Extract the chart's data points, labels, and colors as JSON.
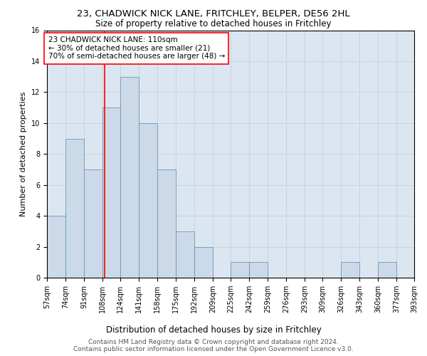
{
  "title": "23, CHADWICK NICK LANE, FRITCHLEY, BELPER, DE56 2HL",
  "subtitle": "Size of property relative to detached houses in Fritchley",
  "xlabel": "Distribution of detached houses by size in Fritchley",
  "ylabel": "Number of detached properties",
  "bin_edges": [
    57,
    74,
    91,
    108,
    124,
    141,
    158,
    175,
    192,
    209,
    225,
    242,
    259,
    276,
    293,
    309,
    326,
    343,
    360,
    377,
    393
  ],
  "bar_heights": [
    4,
    9,
    7,
    11,
    13,
    10,
    7,
    3,
    2,
    0,
    1,
    1,
    0,
    0,
    0,
    0,
    1,
    0,
    1,
    0
  ],
  "bar_color": "#ccd9e8",
  "bar_edgecolor": "#6699bb",
  "red_line_x": 110,
  "annotation_text": "23 CHADWICK NICK LANE: 110sqm\n← 30% of detached houses are smaller (21)\n70% of semi-detached houses are larger (48) →",
  "annotation_box_color": "white",
  "annotation_box_edgecolor": "red",
  "red_line_color": "red",
  "ylim": [
    0,
    16
  ],
  "yticks": [
    0,
    2,
    4,
    6,
    8,
    10,
    12,
    14,
    16
  ],
  "title_fontsize": 9.5,
  "subtitle_fontsize": 8.5,
  "xlabel_fontsize": 8.5,
  "ylabel_fontsize": 8,
  "tick_fontsize": 7,
  "annotation_fontsize": 7.5,
  "footer_text": "Contains HM Land Registry data © Crown copyright and database right 2024.\nContains public sector information licensed under the Open Government Licence v3.0.",
  "footer_fontsize": 6.5,
  "grid_color": "#bbccdd",
  "background_color": "#dce6f0"
}
